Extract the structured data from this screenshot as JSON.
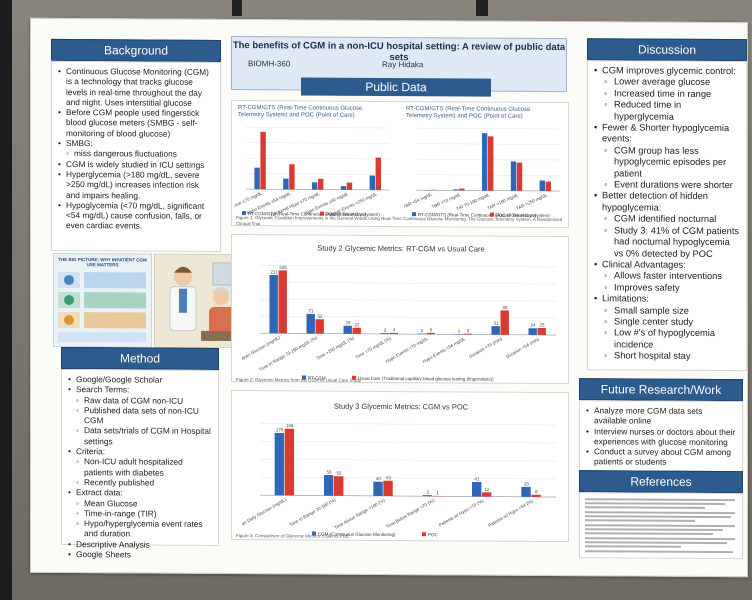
{
  "poster": {
    "title": "The benefits of CGM in a non-ICU hospital setting: A review of public data sets",
    "course": "BIOMH-360",
    "author": "Ray Hidaka",
    "public_data_header": "Public Data"
  },
  "background": {
    "header": "Background",
    "items": [
      {
        "level": 1,
        "text": "Continuous Glucose Monitoring (CGM) is a technology that tracks glucose levels in real-time throughout the day and night. Uses interstitial glucose"
      },
      {
        "level": 1,
        "text": "Before CGM people used fingerstick blood glucose meters (SMBG - self-monitoring of blood glucose)"
      },
      {
        "level": 1,
        "text": "SMBG:"
      },
      {
        "level": 2,
        "text": "miss dangerous fluctuations"
      },
      {
        "level": 1,
        "text": "CGM is widely studied in ICU settings"
      },
      {
        "level": 1,
        "text": "Hyperglycemia (>180 mg/dL, severe >250 mg/dL) increases infection risk and impairs healing."
      },
      {
        "level": 1,
        "text": "Hypoglycemia (<70 mg/dL, significant <54 mg/dL) cause confusion, falls, or even cardiac events."
      }
    ]
  },
  "infographic": {
    "title": "THE BIG PICTURE: WHY INPATIENT CGM USE MATTERS"
  },
  "method": {
    "header": "Method",
    "items": [
      {
        "level": 1,
        "text": "Google/Google Scholar"
      },
      {
        "level": 1,
        "text": "Search Terms:"
      },
      {
        "level": 2,
        "text": "Raw data of CGM non-ICU"
      },
      {
        "level": 2,
        "text": "Published data sets of non-ICU CGM"
      },
      {
        "level": 2,
        "text": "Data sets/trials of CGM in Hospital settings"
      },
      {
        "level": 1,
        "text": "Criteria:"
      },
      {
        "level": 2,
        "text": "Non-ICU adult hospitalized patients with diabetes"
      },
      {
        "level": 2,
        "text": "Recently published"
      },
      {
        "level": 1,
        "text": "Extract data:"
      },
      {
        "level": 2,
        "text": "Mean Glucose"
      },
      {
        "level": 2,
        "text": "Time-in-range (TIR)"
      },
      {
        "level": 2,
        "text": "Hypo/hyperglycemia event rates and duration"
      },
      {
        "level": 1,
        "text": "Descriptive Analysis"
      },
      {
        "level": 1,
        "text": "Google Sheets"
      }
    ]
  },
  "discussion": {
    "header": "Discussion",
    "items": [
      {
        "level": 1,
        "text": "CGM improves glycemic control:"
      },
      {
        "level": 2,
        "text": "Lower average glucose"
      },
      {
        "level": 2,
        "text": "Increased time in range"
      },
      {
        "level": 2,
        "text": "Reduced time in hyperglycemia"
      },
      {
        "level": 1,
        "text": "Fewer & Shorter hypoglycemia events:"
      },
      {
        "level": 2,
        "text": "CGM group has less hypoglycemic episodes per patient"
      },
      {
        "level": 2,
        "text": "Event durations were shorter"
      },
      {
        "level": 1,
        "text": "Better detection of hidden hypoglycemia:"
      },
      {
        "level": 2,
        "text": "CGM identified nocturnal"
      },
      {
        "level": 2,
        "text": "Study 3: 41% of CGM patients had nocturnal hypoglycemia vs 0% detected by POC"
      },
      {
        "level": 1,
        "text": "Clinical Advantages:"
      },
      {
        "level": 2,
        "text": "Allows faster interventions"
      },
      {
        "level": 2,
        "text": "Improves safety"
      },
      {
        "level": 1,
        "text": "Limitations:"
      },
      {
        "level": 2,
        "text": "Small sample size"
      },
      {
        "level": 2,
        "text": "Single center study"
      },
      {
        "level": 2,
        "text": "Low #'s of hypoglycemia incidence"
      },
      {
        "level": 2,
        "text": "Short hospital stay"
      }
    ]
  },
  "future": {
    "header": "Future Research/Work",
    "items": [
      {
        "level": 1,
        "text": "Analyze more CGM data sets available online"
      },
      {
        "level": 1,
        "text": "Interview nurses or doctors about their experiences with glucose monitoring"
      },
      {
        "level": 1,
        "text": "Conduct a survey about CGM among patients or students"
      }
    ]
  },
  "references": {
    "header": "References"
  },
  "captions": {
    "figure1": "Figure 1: Glycemic Condition Improvements in the General Wards Using Real-Time Continuous Glucose Monitoring. The Glucose Telemetry System: A Randomized Clinical Trial",
    "figure2": "Figure 2: Glycemic Metrics from the CGM vs Usual Care Study",
    "figure3": "Figure 3: Comparison of Glycemic Metrics: CGM vs POC"
  },
  "chart_data": [
    {
      "type": "bar",
      "title": "RT-CGM/GTS (Real-Time Continuous Glucose Telemetry System) and POC (Point of Care)",
      "categories": [
        "Mean Glucose ≤70 mg/dL",
        "Hypo Events ≤54 mg/dL",
        "Nocturnal Hypo ≤70 mg/dL",
        "Hypo Events ≤40 mg/dL",
        "Hyper Events >250 mg/dL"
      ],
      "series": [
        {
          "name": "RT-CGM/GTS (Real-Time Continuous Glucose Telemetry System)",
          "color": "#2e66b8",
          "values": [
            0.6,
            0.3,
            0.2,
            0.1,
            0.4
          ]
        },
        {
          "name": "POC (Point of Care)",
          "color": "#d93a33",
          "values": [
            1.6,
            0.7,
            0.3,
            0.2,
            0.9
          ]
        }
      ]
    },
    {
      "type": "bar",
      "title": "RT-CGM/GTS (Real-Time Continuous Glucose Telemetry System) and POC (Point of Care)",
      "categories": [
        "TBR <54 mg/dL",
        "TBR <70 mg/dL",
        "TIR 70-180 mg/dL",
        "TAR >180 mg/dL",
        "TAR >250 mg/dL"
      ],
      "series": [
        {
          "name": "RT-CGM/GTS (Real-Time Continuous Glucose Telemetry System)",
          "color": "#2e66b8",
          "values": [
            0.2,
            1.0,
            55,
            28,
            10
          ]
        },
        {
          "name": "POC (Point of Care)",
          "color": "#d93a33",
          "values": [
            0.5,
            1.8,
            52,
            27,
            9
          ]
        }
      ]
    },
    {
      "type": "bar",
      "title": "Study 2 Glycemic Metrics: RT-CGM vs Usual Care",
      "categories": [
        "Mean Glucose (mg/dL)",
        "Time in Range 70-180 mg/dL (%)",
        "Time >250 mg/dL (%)",
        "Time <70 mg/dL (%)",
        "Hypo Events <70 mg/dL",
        "Hypo Events <54 mg/dL",
        "Duration <70 (min)",
        "Duration <54 (min)"
      ],
      "series": [
        {
          "name": "RT-CGM",
          "color": "#2e66b8",
          "values": [
            211,
            71,
            29,
            3,
            2,
            1,
            31,
            24
          ]
        },
        {
          "name": "Usual Care (Traditional capillary blood glucose testing (fingersticks))",
          "color": "#d93a33",
          "values": [
            228,
            52,
            22,
            4,
            5,
            3,
            88,
            25
          ]
        }
      ],
      "data_labels": [
        "211.00",
        "228.00",
        "71.00",
        "52.15",
        "29.00",
        "3",
        "1",
        "31",
        "24.00"
      ]
    },
    {
      "type": "bar",
      "title": "Study 3 Glycemic Metrics: CGM vs POC",
      "categories": [
        "Mean Daily Glucose (mg/dL)",
        "Time in Range 70-180 (%)",
        "Time Above Range >180 (%)",
        "Time Below Range <70 (%)",
        "Patients w/ Hypo <70 (%)",
        "Patients w/ Hypo <54 (%)"
      ],
      "series": [
        {
          "name": "CGM (Continuous Glucose Monitoring)",
          "color": "#2e66b8",
          "values": [
            176,
            58,
            40,
            3,
            41,
            28
          ]
        },
        {
          "name": "POC",
          "color": "#d93a33",
          "values": [
            188,
            55,
            43,
            1,
            12,
            6
          ]
        }
      ]
    }
  ]
}
